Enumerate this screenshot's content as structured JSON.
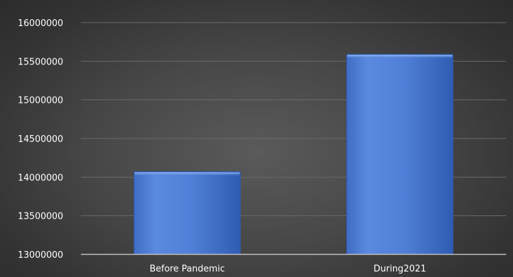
{
  "chart_data": {
    "type": "bar",
    "title": "",
    "xlabel": "",
    "ylabel": "",
    "categories": [
      "Before Pandemic",
      "During2021"
    ],
    "values": [
      14070000,
      15590000
    ],
    "ylim": [
      13000000,
      16000000
    ],
    "yticks": [
      "13000000",
      "13500000",
      "14000000",
      "14500000",
      "15000000",
      "15500000",
      "16000000"
    ],
    "grid": true,
    "legend": "none",
    "colors": {
      "bar": "#4f7fd6",
      "bar_edge": "#2d5bb0",
      "background": "#474747",
      "gridline": "#6a6a6a",
      "axis": "#bfbfbf",
      "text": "#ffffff"
    }
  }
}
